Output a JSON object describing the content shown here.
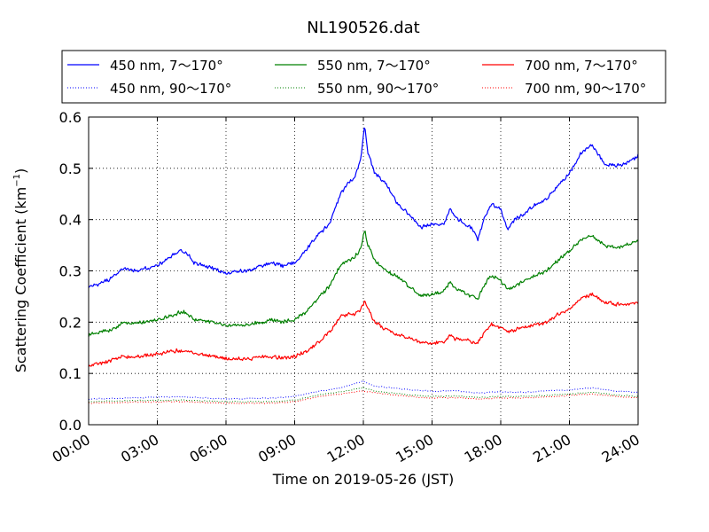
{
  "chart_data": {
    "type": "line",
    "title": "NL190526.dat",
    "xlabel": "Time on 2019-05-26 (JST)",
    "ylabel_main": "Scattering Coefficient (km",
    "ylabel_sup": "−1",
    "ylabel_close": ")",
    "xlim": [
      0,
      24
    ],
    "ylim": [
      0,
      0.6
    ],
    "x_unit": "hours",
    "xticks": [
      {
        "value": 0,
        "label": "00:00"
      },
      {
        "value": 3,
        "label": "03:00"
      },
      {
        "value": 6,
        "label": "06:00"
      },
      {
        "value": 9,
        "label": "09:00"
      },
      {
        "value": 12,
        "label": "12:00"
      },
      {
        "value": 15,
        "label": "15:00"
      },
      {
        "value": 18,
        "label": "18:00"
      },
      {
        "value": 21,
        "label": "21:00"
      },
      {
        "value": 24,
        "label": "24:00"
      }
    ],
    "yticks": [
      {
        "value": 0,
        "label": "0.0"
      },
      {
        "value": 0.1,
        "label": "0.1"
      },
      {
        "value": 0.2,
        "label": "0.2"
      },
      {
        "value": 0.3,
        "label": "0.3"
      },
      {
        "value": 0.4,
        "label": "0.4"
      },
      {
        "value": 0.5,
        "label": "0.5"
      },
      {
        "value": 0.6,
        "label": "0.6"
      }
    ],
    "grid": true,
    "legend_position": "top",
    "series": [
      {
        "name": "450 nm, 7～170°",
        "color": "#0000ff",
        "style": "solid",
        "points": [
          [
            0,
            0.27
          ],
          [
            0.5,
            0.275
          ],
          [
            1,
            0.285
          ],
          [
            1.5,
            0.305
          ],
          [
            2,
            0.3
          ],
          [
            2.5,
            0.305
          ],
          [
            3,
            0.31
          ],
          [
            3.5,
            0.325
          ],
          [
            4,
            0.34
          ],
          [
            4.3,
            0.335
          ],
          [
            4.6,
            0.315
          ],
          [
            5,
            0.31
          ],
          [
            5.5,
            0.305
          ],
          [
            6,
            0.295
          ],
          [
            6.5,
            0.3
          ],
          [
            7,
            0.3
          ],
          [
            7.5,
            0.31
          ],
          [
            8,
            0.315
          ],
          [
            8.5,
            0.31
          ],
          [
            9,
            0.315
          ],
          [
            9.5,
            0.34
          ],
          [
            10,
            0.37
          ],
          [
            10.5,
            0.39
          ],
          [
            11,
            0.45
          ],
          [
            11.3,
            0.47
          ],
          [
            11.6,
            0.48
          ],
          [
            11.9,
            0.52
          ],
          [
            12.05,
            0.585
          ],
          [
            12.2,
            0.53
          ],
          [
            12.5,
            0.49
          ],
          [
            13,
            0.47
          ],
          [
            13.5,
            0.43
          ],
          [
            14,
            0.41
          ],
          [
            14.5,
            0.385
          ],
          [
            15,
            0.39
          ],
          [
            15.5,
            0.39
          ],
          [
            15.8,
            0.42
          ],
          [
            16,
            0.405
          ],
          [
            16.5,
            0.39
          ],
          [
            16.8,
            0.38
          ],
          [
            17,
            0.36
          ],
          [
            17.3,
            0.405
          ],
          [
            17.6,
            0.43
          ],
          [
            18,
            0.42
          ],
          [
            18.3,
            0.38
          ],
          [
            18.6,
            0.4
          ],
          [
            19,
            0.41
          ],
          [
            19.5,
            0.43
          ],
          [
            20,
            0.44
          ],
          [
            20.5,
            0.465
          ],
          [
            21,
            0.49
          ],
          [
            21.5,
            0.53
          ],
          [
            22,
            0.545
          ],
          [
            22.5,
            0.51
          ],
          [
            23,
            0.505
          ],
          [
            23.5,
            0.51
          ],
          [
            24,
            0.525
          ]
        ]
      },
      {
        "name": "550 nm, 7～170°",
        "color": "#008000",
        "style": "solid",
        "points": [
          [
            0,
            0.175
          ],
          [
            0.5,
            0.18
          ],
          [
            1,
            0.185
          ],
          [
            1.5,
            0.2
          ],
          [
            2,
            0.198
          ],
          [
            2.5,
            0.2
          ],
          [
            3,
            0.205
          ],
          [
            3.5,
            0.21
          ],
          [
            4,
            0.22
          ],
          [
            4.3,
            0.218
          ],
          [
            4.6,
            0.205
          ],
          [
            5,
            0.203
          ],
          [
            5.5,
            0.2
          ],
          [
            6,
            0.193
          ],
          [
            6.5,
            0.195
          ],
          [
            7,
            0.195
          ],
          [
            7.5,
            0.2
          ],
          [
            8,
            0.205
          ],
          [
            8.5,
            0.2
          ],
          [
            9,
            0.205
          ],
          [
            9.5,
            0.22
          ],
          [
            10,
            0.245
          ],
          [
            10.5,
            0.27
          ],
          [
            11,
            0.31
          ],
          [
            11.3,
            0.32
          ],
          [
            11.6,
            0.325
          ],
          [
            11.9,
            0.345
          ],
          [
            12.05,
            0.38
          ],
          [
            12.2,
            0.35
          ],
          [
            12.5,
            0.32
          ],
          [
            13,
            0.3
          ],
          [
            13.5,
            0.29
          ],
          [
            14,
            0.27
          ],
          [
            14.5,
            0.25
          ],
          [
            15,
            0.255
          ],
          [
            15.5,
            0.26
          ],
          [
            15.8,
            0.28
          ],
          [
            16,
            0.265
          ],
          [
            16.5,
            0.255
          ],
          [
            16.8,
            0.25
          ],
          [
            17,
            0.245
          ],
          [
            17.3,
            0.275
          ],
          [
            17.6,
            0.29
          ],
          [
            18,
            0.28
          ],
          [
            18.3,
            0.265
          ],
          [
            18.6,
            0.27
          ],
          [
            19,
            0.28
          ],
          [
            19.5,
            0.29
          ],
          [
            20,
            0.3
          ],
          [
            20.5,
            0.32
          ],
          [
            21,
            0.34
          ],
          [
            21.5,
            0.36
          ],
          [
            22,
            0.37
          ],
          [
            22.5,
            0.35
          ],
          [
            23,
            0.345
          ],
          [
            23.5,
            0.35
          ],
          [
            24,
            0.36
          ]
        ]
      },
      {
        "name": "700 nm, 7～170°",
        "color": "#ff0000",
        "style": "solid",
        "points": [
          [
            0,
            0.115
          ],
          [
            0.5,
            0.12
          ],
          [
            1,
            0.125
          ],
          [
            1.5,
            0.133
          ],
          [
            2,
            0.132
          ],
          [
            2.5,
            0.135
          ],
          [
            3,
            0.138
          ],
          [
            3.5,
            0.142
          ],
          [
            4,
            0.145
          ],
          [
            4.3,
            0.144
          ],
          [
            4.6,
            0.138
          ],
          [
            5,
            0.136
          ],
          [
            5.5,
            0.133
          ],
          [
            6,
            0.128
          ],
          [
            6.5,
            0.128
          ],
          [
            7,
            0.128
          ],
          [
            7.5,
            0.132
          ],
          [
            8,
            0.133
          ],
          [
            8.5,
            0.13
          ],
          [
            9,
            0.133
          ],
          [
            9.5,
            0.143
          ],
          [
            10,
            0.16
          ],
          [
            10.5,
            0.18
          ],
          [
            11,
            0.21
          ],
          [
            11.3,
            0.215
          ],
          [
            11.6,
            0.215
          ],
          [
            11.9,
            0.225
          ],
          [
            12.05,
            0.24
          ],
          [
            12.2,
            0.225
          ],
          [
            12.5,
            0.2
          ],
          [
            13,
            0.185
          ],
          [
            13.5,
            0.175
          ],
          [
            14,
            0.17
          ],
          [
            14.5,
            0.16
          ],
          [
            15,
            0.158
          ],
          [
            15.5,
            0.162
          ],
          [
            15.8,
            0.175
          ],
          [
            16,
            0.168
          ],
          [
            16.5,
            0.165
          ],
          [
            16.8,
            0.16
          ],
          [
            17,
            0.16
          ],
          [
            17.3,
            0.18
          ],
          [
            17.6,
            0.195
          ],
          [
            18,
            0.19
          ],
          [
            18.3,
            0.18
          ],
          [
            18.6,
            0.185
          ],
          [
            19,
            0.19
          ],
          [
            19.5,
            0.195
          ],
          [
            20,
            0.2
          ],
          [
            20.5,
            0.215
          ],
          [
            21,
            0.225
          ],
          [
            21.5,
            0.245
          ],
          [
            22,
            0.255
          ],
          [
            22.5,
            0.24
          ],
          [
            23,
            0.235
          ],
          [
            23.5,
            0.235
          ],
          [
            24,
            0.24
          ]
        ]
      },
      {
        "name": "450 nm, 90～170°",
        "color": "#0000ff",
        "style": "dotted",
        "points": [
          [
            0,
            0.05
          ],
          [
            2,
            0.052
          ],
          [
            4,
            0.055
          ],
          [
            6,
            0.05
          ],
          [
            8,
            0.052
          ],
          [
            9,
            0.055
          ],
          [
            10,
            0.065
          ],
          [
            11,
            0.072
          ],
          [
            12,
            0.085
          ],
          [
            12.5,
            0.075
          ],
          [
            14,
            0.068
          ],
          [
            15,
            0.065
          ],
          [
            16,
            0.066
          ],
          [
            17,
            0.062
          ],
          [
            18,
            0.064
          ],
          [
            19,
            0.063
          ],
          [
            20,
            0.066
          ],
          [
            21,
            0.068
          ],
          [
            22,
            0.072
          ],
          [
            23,
            0.066
          ],
          [
            24,
            0.063
          ]
        ]
      },
      {
        "name": "550 nm, 90～170°",
        "color": "#008000",
        "style": "dotted",
        "points": [
          [
            0,
            0.045
          ],
          [
            2,
            0.047
          ],
          [
            4,
            0.048
          ],
          [
            6,
            0.045
          ],
          [
            8,
            0.045
          ],
          [
            9,
            0.048
          ],
          [
            10,
            0.058
          ],
          [
            11,
            0.064
          ],
          [
            12,
            0.072
          ],
          [
            12.5,
            0.066
          ],
          [
            14,
            0.058
          ],
          [
            15,
            0.055
          ],
          [
            16,
            0.056
          ],
          [
            17,
            0.053
          ],
          [
            18,
            0.055
          ],
          [
            19,
            0.055
          ],
          [
            20,
            0.057
          ],
          [
            21,
            0.06
          ],
          [
            22,
            0.063
          ],
          [
            23,
            0.058
          ],
          [
            24,
            0.055
          ]
        ]
      },
      {
        "name": "700 nm, 90～170°",
        "color": "#ff0000",
        "style": "dotted",
        "points": [
          [
            0,
            0.042
          ],
          [
            2,
            0.044
          ],
          [
            4,
            0.045
          ],
          [
            6,
            0.042
          ],
          [
            8,
            0.042
          ],
          [
            9,
            0.045
          ],
          [
            10,
            0.054
          ],
          [
            11,
            0.06
          ],
          [
            12,
            0.066
          ],
          [
            12.5,
            0.062
          ],
          [
            14,
            0.055
          ],
          [
            15,
            0.052
          ],
          [
            16,
            0.053
          ],
          [
            17,
            0.05
          ],
          [
            18,
            0.052
          ],
          [
            19,
            0.052
          ],
          [
            20,
            0.054
          ],
          [
            21,
            0.057
          ],
          [
            22,
            0.06
          ],
          [
            23,
            0.055
          ],
          [
            24,
            0.052
          ]
        ]
      }
    ]
  }
}
